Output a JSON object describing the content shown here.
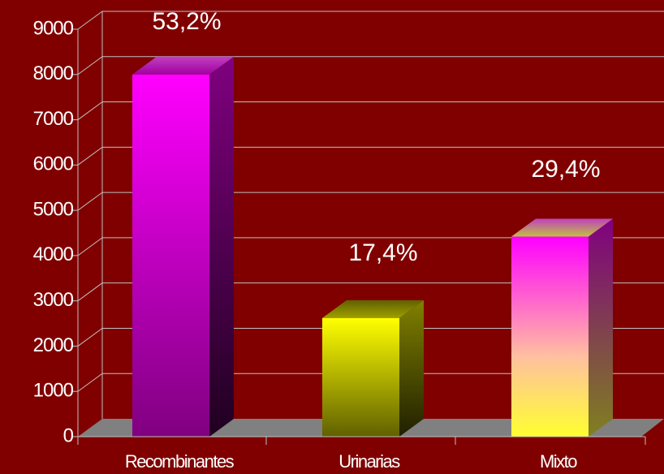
{
  "chart_data": {
    "type": "bar3d",
    "categories": [
      "Recombinantes",
      "Urinarias",
      "Mixto"
    ],
    "values": [
      8000,
      2620,
      4420
    ],
    "percent_labels": [
      "53,2%",
      "17,4%",
      "29,4%"
    ],
    "ylim": [
      0,
      9000
    ],
    "yticks": [
      0,
      1000,
      2000,
      3000,
      4000,
      5000,
      6000,
      7000,
      8000,
      9000
    ],
    "grid": true
  }
}
